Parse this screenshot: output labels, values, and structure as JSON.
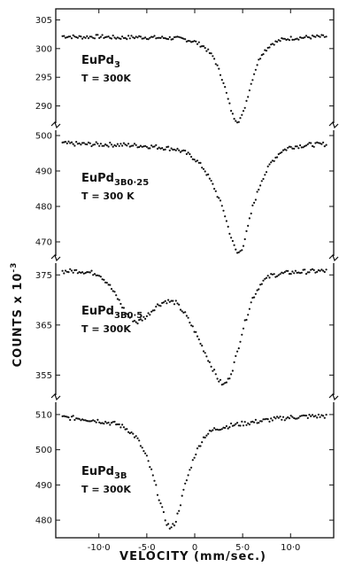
{
  "chart_data": {
    "type": "scatter",
    "xlabel": "VELOCITY (mm/sec.)",
    "ylabel": "COUNTS x 10",
    "ylabel_exp": "-3",
    "xlim": [
      -14.5,
      14.5
    ],
    "x_ticks": [
      -10,
      -5,
      0,
      5,
      10
    ],
    "x_tick_labels": [
      "-10·0",
      "-5·0",
      "0",
      "5·0",
      "10·0"
    ],
    "panels": [
      {
        "name": "EuPd3",
        "label_main": "EuPd",
        "label_sub": "3",
        "label_temp": "T = 300K",
        "ylim": [
          287,
          306
        ],
        "y_ticks": [
          290,
          295,
          300,
          305
        ],
        "baseline": 302.0,
        "x": [
          -14,
          -12,
          -10,
          -8,
          -6,
          -4,
          -2,
          -1,
          0,
          1,
          2,
          3,
          3.5,
          4,
          4.5,
          5,
          5.5,
          6,
          6.5,
          7,
          8,
          9,
          10,
          12,
          14
        ],
        "y": [
          302.2,
          302.0,
          302.1,
          301.9,
          302.0,
          301.9,
          301.8,
          301.6,
          301.2,
          300.3,
          298.4,
          294.2,
          291.0,
          288.2,
          287.3,
          288.4,
          291.5,
          294.6,
          297.2,
          299.1,
          300.8,
          301.5,
          301.8,
          302.0,
          302.1
        ]
      },
      {
        "name": "EuPd3B0.25",
        "label_main": "EuPd",
        "label_sub": "3B0·25",
        "label_temp": "T = 300 K",
        "ylim": [
          466,
          501
        ],
        "y_ticks": [
          470,
          480,
          490,
          500
        ],
        "baseline": 497.5,
        "x": [
          -14,
          -12,
          -10,
          -8,
          -6,
          -4,
          -2,
          -1,
          0,
          1,
          2,
          3,
          3.5,
          4,
          4.5,
          5,
          5.5,
          6,
          7,
          8,
          9,
          10,
          12,
          14
        ],
        "y": [
          497.8,
          497.6,
          497.5,
          497.4,
          497.2,
          496.8,
          496.2,
          495.2,
          493.5,
          490.5,
          485.5,
          479.0,
          474.0,
          469.5,
          466.5,
          468.5,
          473.5,
          479.5,
          487.5,
          492.5,
          495.5,
          496.8,
          497.4,
          497.6
        ]
      },
      {
        "name": "EuPd3B0.5",
        "label_main": "EuPd",
        "label_sub": "3B0·5",
        "label_temp": "T = 300K",
        "ylim": [
          351,
          377
        ],
        "y_ticks": [
          355,
          365,
          375
        ],
        "baseline": 375.5,
        "x": [
          -14,
          -12,
          -10,
          -9,
          -8,
          -7,
          -6,
          -5,
          -4,
          -3,
          -2,
          -1,
          0,
          1,
          2,
          2.5,
          3,
          3.5,
          4,
          4.5,
          5,
          6,
          7,
          8,
          10,
          12,
          14
        ],
        "y": [
          375.7,
          375.8,
          375.2,
          373.2,
          370.2,
          366.8,
          365.5,
          366.8,
          368.8,
          369.8,
          369.5,
          367.2,
          363.8,
          359.8,
          355.8,
          354.0,
          353.0,
          354.0,
          356.5,
          360.0,
          364.0,
          370.2,
          373.6,
          374.9,
          375.5,
          375.7,
          375.8
        ]
      },
      {
        "name": "EuPd3B",
        "label_main": "EuPd",
        "label_sub": "3B",
        "label_temp": "T = 300K",
        "ylim": [
          476,
          513
        ],
        "y_ticks": [
          480,
          490,
          500,
          510
        ],
        "baseline": 509.5,
        "x": [
          -14,
          -12,
          -10,
          -8,
          -7,
          -6,
          -5,
          -4.5,
          -4,
          -3.5,
          -3,
          -2.5,
          -2,
          -1.5,
          -1,
          0,
          1,
          2,
          4,
          6,
          8,
          10,
          12,
          14
        ],
        "y": [
          509.2,
          508.9,
          508.2,
          507.2,
          505.8,
          503.2,
          497.8,
          493.8,
          489.0,
          484.0,
          479.5,
          477.5,
          479.5,
          484.5,
          490.0,
          498.5,
          503.8,
          505.8,
          507.0,
          507.8,
          508.6,
          509.2,
          509.5,
          509.6
        ]
      }
    ]
  }
}
